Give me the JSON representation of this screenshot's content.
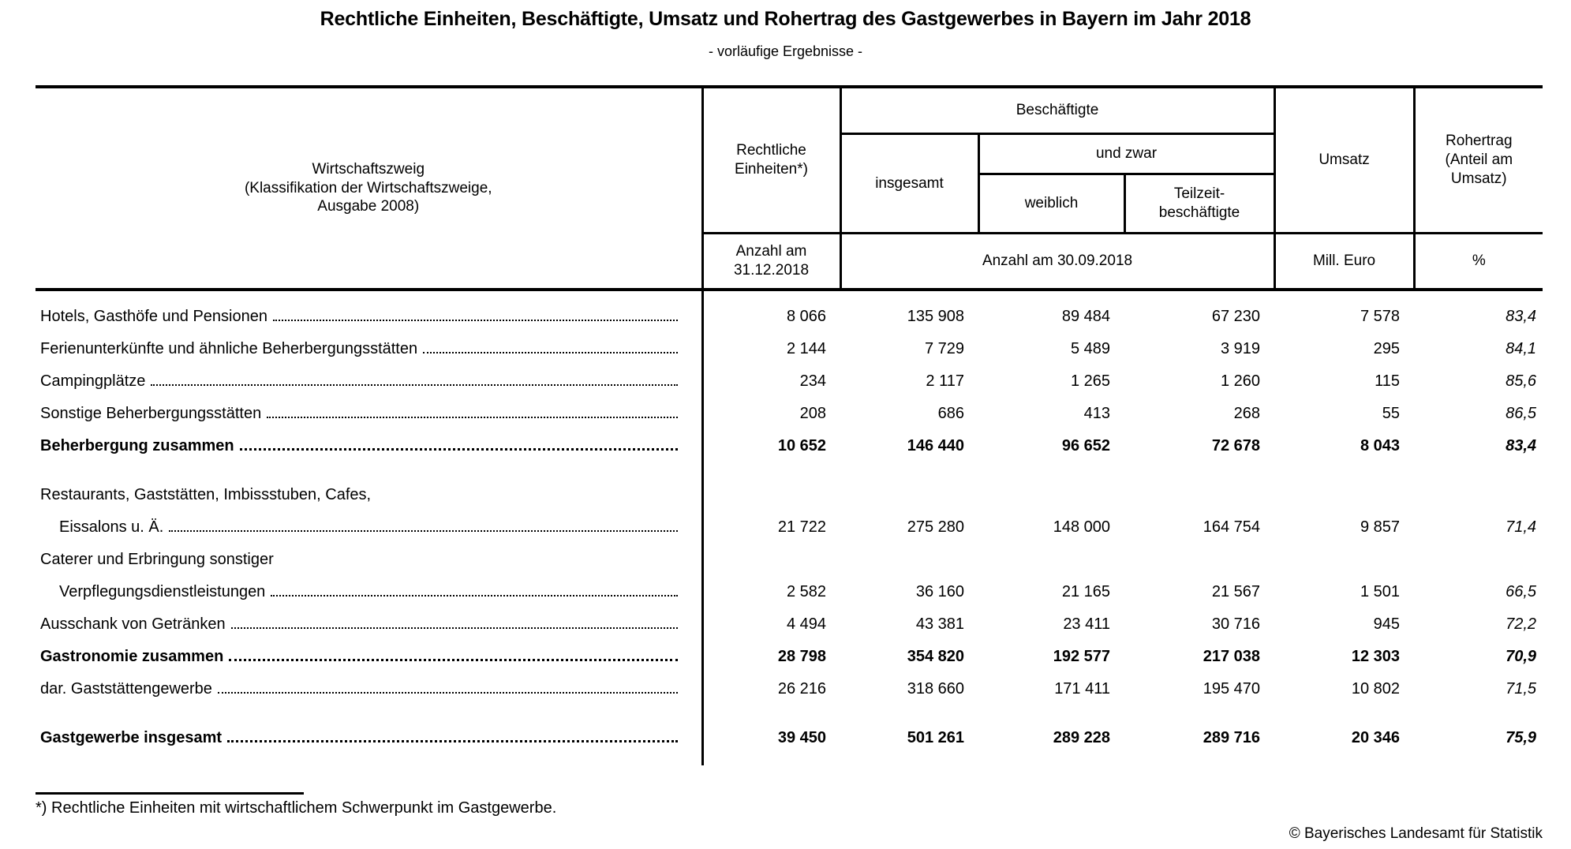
{
  "page": {
    "title": "Rechtliche Einheiten, Beschäftigte, Umsatz und Rohertrag des Gastgewerbes in Bayern im Jahr 2018",
    "subtitle": "- vorläufige Ergebnisse -",
    "footnote": "*) Rechtliche Einheiten mit wirtschaftlichem Schwerpunkt im Gastgewerbe.",
    "copyright": "© Bayerisches Landesamt für Statistik"
  },
  "table": {
    "header": {
      "wirtschaftszweig": "Wirtschaftszweig\n(Klassifikation der Wirtschaftszweige,\nAusgabe 2008)",
      "rechtliche_einheiten": "Rechtliche\nEinheiten*)",
      "beschaeftigte": "Beschäftigte",
      "insgesamt": "insgesamt",
      "und_zwar": "und zwar",
      "weiblich": "weiblich",
      "teilzeit": "Teilzeit-\nbeschäftigte",
      "umsatz": "Umsatz",
      "rohertrag": "Rohertrag\n(Anteil am\nUmsatz)",
      "unit_einheiten": "Anzahl am\n31.12.2018",
      "unit_beschaeftigte": "Anzahl am 30.09.2018",
      "unit_umsatz": "Mill. Euro",
      "unit_rohertrag": "%"
    },
    "rows": [
      {
        "label": "Hotels, Gasthöfe und Pensionen",
        "bold": false,
        "values": [
          "8 066",
          "135 908",
          "89 484",
          "67 230",
          "7 578",
          "83,4"
        ]
      },
      {
        "label": "Ferienunterkünfte und ähnliche Beherbergungsstätten",
        "bold": false,
        "values": [
          "2 144",
          "7 729",
          "5 489",
          "3 919",
          "295",
          "84,1"
        ]
      },
      {
        "label": "Campingplätze",
        "bold": false,
        "values": [
          "234",
          "2 117",
          "1 265",
          "1 260",
          "115",
          "85,6"
        ]
      },
      {
        "label": "Sonstige Beherbergungsstätten",
        "bold": false,
        "values": [
          "208",
          "686",
          "413",
          "268",
          "55",
          "86,5"
        ]
      },
      {
        "label": "Beherbergung zusammen",
        "bold": true,
        "values": [
          "10 652",
          "146 440",
          "96 652",
          "72 678",
          "8 043",
          "83,4"
        ]
      },
      {
        "spacer": true
      },
      {
        "pre": "Restaurants, Gaststätten, Imbissstuben, Cafes,",
        "label": "Eissalons u. Ä.",
        "indent": true,
        "bold": false,
        "values": [
          "21 722",
          "275 280",
          "148 000",
          "164 754",
          "9 857",
          "71,4"
        ]
      },
      {
        "pre": "Caterer und Erbringung sonstiger",
        "label": "Verpflegungsdienstleistungen",
        "indent": true,
        "bold": false,
        "values": [
          "2 582",
          "36 160",
          "21 165",
          "21 567",
          "1 501",
          "66,5"
        ]
      },
      {
        "label": "Ausschank von Getränken",
        "bold": false,
        "values": [
          "4 494",
          "43 381",
          "23 411",
          "30 716",
          "945",
          "72,2"
        ]
      },
      {
        "label": "Gastronomie zusammen",
        "bold": true,
        "values": [
          "28 798",
          "354 820",
          "192 577",
          "217 038",
          "12 303",
          "70,9"
        ]
      },
      {
        "label": "dar. Gaststättengewerbe",
        "bold": false,
        "values": [
          "26 216",
          "318 660",
          "171 411",
          "195 470",
          "10 802",
          "71,5"
        ]
      },
      {
        "spacer": true
      },
      {
        "label": "Gastgewerbe insgesamt",
        "bold": true,
        "values": [
          "39 450",
          "501 261",
          "289 228",
          "289 716",
          "20 346",
          "75,9"
        ]
      }
    ]
  }
}
